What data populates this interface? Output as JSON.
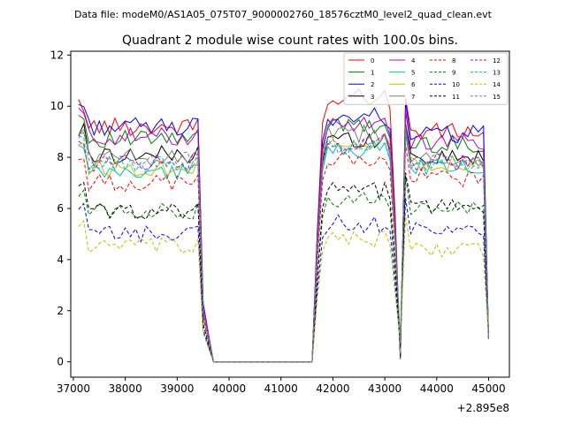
{
  "chart_data": {
    "type": "line",
    "suptitle": "Data file: modeM0/AS1A05_075T07_9000002760_18576cztM0_level2_quad_clean.evt",
    "title": "Quadrant 2 module wise count rates with 100.0s bins.",
    "xlabel": "",
    "ylabel": "",
    "x_offset_label": "+2.895e8",
    "xlim": [
      36950,
      45400
    ],
    "ylim": [
      -0.6,
      12.15
    ],
    "xticks": [
      37000,
      38000,
      39000,
      40000,
      41000,
      42000,
      43000,
      44000,
      45000
    ],
    "xtick_labels": [
      "37000",
      "38000",
      "39000",
      "40000",
      "41000",
      "42000",
      "43000",
      "44000",
      "45000"
    ],
    "yticks": [
      0,
      2,
      4,
      6,
      8,
      10,
      12
    ],
    "ytick_labels": [
      "0",
      "2",
      "4",
      "6",
      "8",
      "10",
      "12"
    ],
    "legend_location": "upper-right",
    "legend_columns": 4,
    "segments": [
      {
        "start": 37100,
        "step": 100,
        "count": 24
      },
      {
        "start": 39500,
        "step": 100,
        "count": 3
      },
      {
        "start": 40000,
        "step": 100,
        "count": 17
      },
      {
        "start": 41700,
        "step": 100,
        "count": 17
      },
      {
        "start": 43400,
        "step": 100,
        "count": 17
      }
    ],
    "series": [
      {
        "name": "0",
        "color": "#ff0000",
        "dash": false,
        "level_pre": 9.2,
        "level_post": 10.4,
        "level_post2": 9.0
      },
      {
        "name": "1",
        "color": "#008000",
        "dash": false,
        "level_pre": 8.7,
        "level_post": 9.2,
        "level_post2": 8.5
      },
      {
        "name": "2",
        "color": "#0000ff",
        "dash": false,
        "level_pre": 9.2,
        "level_post": 9.6,
        "level_post2": 8.9
      },
      {
        "name": "3",
        "color": "#000000",
        "dash": false,
        "level_pre": 8.1,
        "level_post": 8.7,
        "level_post2": 8.0
      },
      {
        "name": "4",
        "color": "#bf00bf",
        "dash": false,
        "level_pre": 8.8,
        "level_post": 9.3,
        "level_post2": 8.6
      },
      {
        "name": "5",
        "color": "#00bfbf",
        "dash": false,
        "level_pre": 7.4,
        "level_post": 8.3,
        "level_post2": 7.6
      },
      {
        "name": "6",
        "color": "#bfbf00",
        "dash": false,
        "level_pre": 7.6,
        "level_post": 8.6,
        "level_post2": 7.8
      },
      {
        "name": "7",
        "color": "#808080",
        "dash": false,
        "level_pre": 8.0,
        "level_post": 8.9,
        "level_post2": 7.9
      },
      {
        "name": "8",
        "color": "#ff0000",
        "dash": true,
        "level_pre": 7.0,
        "level_post": 7.9,
        "level_post2": 7.2
      },
      {
        "name": "9",
        "color": "#008000",
        "dash": true,
        "level_pre": 5.9,
        "level_post": 6.3,
        "level_post2": 6.0
      },
      {
        "name": "10",
        "color": "#0000ff",
        "dash": true,
        "level_pre": 5.0,
        "level_post": 5.4,
        "level_post2": 5.1
      },
      {
        "name": "11",
        "color": "#000000",
        "dash": true,
        "level_pre": 5.9,
        "level_post": 6.7,
        "level_post2": 6.1
      },
      {
        "name": "12",
        "color": "#bf00bf",
        "dash": true,
        "level_pre": 7.8,
        "level_post": 8.6,
        "level_post2": 7.8
      },
      {
        "name": "13",
        "color": "#00bfbf",
        "dash": true,
        "level_pre": 7.7,
        "level_post": 8.4,
        "level_post2": 7.7
      },
      {
        "name": "14",
        "color": "#bfbf00",
        "dash": true,
        "level_pre": 4.5,
        "level_post": 4.8,
        "level_post2": 4.4
      },
      {
        "name": "15",
        "color": "#808080",
        "dash": true,
        "level_pre": 7.9,
        "level_post": 8.5,
        "level_post2": 7.8
      }
    ]
  }
}
